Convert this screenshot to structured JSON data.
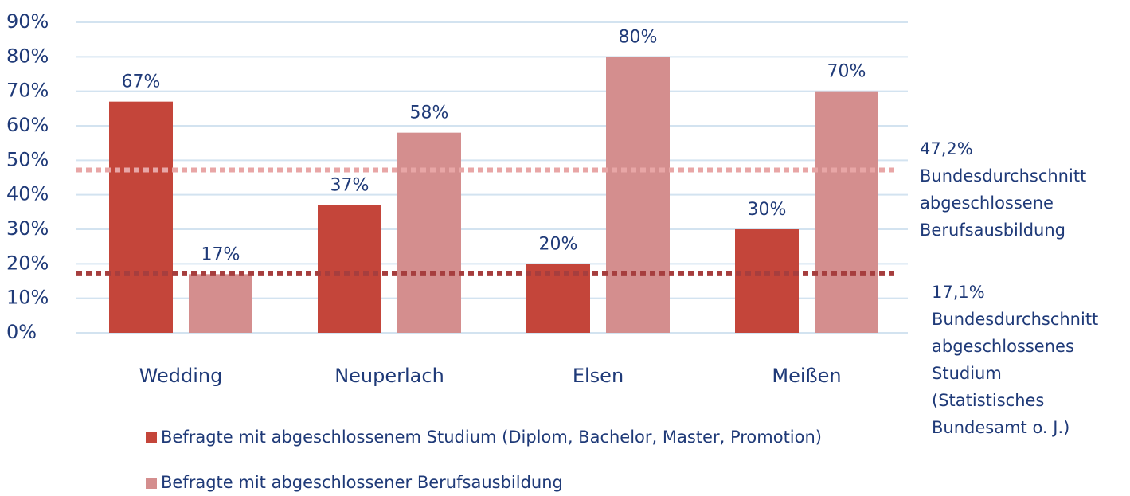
{
  "chart_data": {
    "type": "bar",
    "categories": [
      "Wedding",
      "Neuperlach",
      "Elsen",
      "Meißen"
    ],
    "series": [
      {
        "name": "Befragte mit abgeschlossenem Studium (Diplom, Bachelor, Master, Promotion)",
        "color": "#c4453a",
        "values": [
          67,
          37,
          20,
          30
        ],
        "value_labels": [
          "67%",
          "37%",
          "20%",
          "30%"
        ]
      },
      {
        "name": "Befragte mit abgeschlossener Berufsausbildung",
        "color": "#d48e8e",
        "values": [
          17,
          58,
          80,
          70
        ],
        "value_labels": [
          "17%",
          "58%",
          "80%",
          "70%"
        ]
      }
    ],
    "ylim": [
      0,
      90
    ],
    "yticks": [
      {
        "value": 0,
        "label": "0%"
      },
      {
        "value": 10,
        "label": "10%"
      },
      {
        "value": 20,
        "label": "20%"
      },
      {
        "value": 30,
        "label": "30%"
      },
      {
        "value": 40,
        "label": "40%"
      },
      {
        "value": 50,
        "label": "50%"
      },
      {
        "value": 60,
        "label": "60%"
      },
      {
        "value": 70,
        "label": "70%"
      },
      {
        "value": 80,
        "label": "80%"
      },
      {
        "value": 90,
        "label": "90%"
      }
    ],
    "grid": true,
    "reference_lines": [
      {
        "value": 47.2,
        "label": "47,2%",
        "color": "#e8a6a6",
        "text": [
          "Bundesdurchschnitt",
          "abgeschlossene",
          "Berufsausbildung"
        ]
      },
      {
        "value": 17.1,
        "label": "17,1%",
        "color": "#a63e3e",
        "text": [
          "Bundesdurchschnitt",
          "abgeschlossenes",
          "Studium",
          "(Statistisches",
          "Bundesamt o. J.)"
        ]
      }
    ]
  }
}
